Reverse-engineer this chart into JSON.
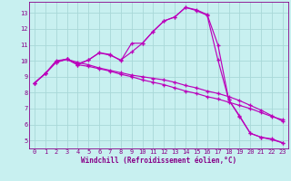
{
  "xlabel": "Windchill (Refroidissement éolien,°C)",
  "bg_color": "#c8f0f0",
  "grid_color": "#a8d8d8",
  "line_color": "#bb00bb",
  "xlim": [
    -0.5,
    23.5
  ],
  "ylim": [
    4.5,
    13.7
  ],
  "yticks": [
    5,
    6,
    7,
    8,
    9,
    10,
    11,
    12,
    13
  ],
  "xticks": [
    0,
    1,
    2,
    3,
    4,
    5,
    6,
    7,
    8,
    9,
    10,
    11,
    12,
    13,
    14,
    15,
    16,
    17,
    18,
    19,
    20,
    21,
    22,
    23
  ],
  "line1_x": [
    0,
    1,
    2,
    3,
    4,
    5,
    6,
    7,
    8,
    9,
    10,
    11,
    12,
    13,
    14,
    15,
    16,
    17,
    18,
    19,
    20,
    21,
    22,
    23
  ],
  "line1_y": [
    8.6,
    9.2,
    9.9,
    10.1,
    9.8,
    10.05,
    10.5,
    10.4,
    10.0,
    11.1,
    11.1,
    11.85,
    12.5,
    12.75,
    13.35,
    13.2,
    12.9,
    11.0,
    7.55,
    6.5,
    5.45,
    5.2,
    5.05,
    4.85
  ],
  "line2_x": [
    0,
    1,
    2,
    3,
    4,
    5,
    6,
    7,
    8,
    9,
    10,
    11,
    12,
    13,
    14,
    15,
    16,
    17,
    18,
    19,
    20,
    21,
    22,
    23
  ],
  "line2_y": [
    8.6,
    9.2,
    9.9,
    10.1,
    9.75,
    9.65,
    9.5,
    9.35,
    9.15,
    9.0,
    8.8,
    8.65,
    8.5,
    8.3,
    8.1,
    7.95,
    7.75,
    7.6,
    7.4,
    7.2,
    7.0,
    6.75,
    6.5,
    6.3
  ],
  "line3_x": [
    0,
    1,
    2,
    3,
    4,
    5,
    6,
    7,
    8,
    9,
    10,
    11,
    12,
    13,
    14,
    15,
    16,
    17,
    18,
    19,
    20,
    21,
    22,
    23
  ],
  "line3_y": [
    8.6,
    9.2,
    9.95,
    10.1,
    9.9,
    9.75,
    9.55,
    9.4,
    9.25,
    9.1,
    9.0,
    8.9,
    8.8,
    8.65,
    8.45,
    8.3,
    8.1,
    7.95,
    7.75,
    7.5,
    7.2,
    6.9,
    6.55,
    6.2
  ],
  "line4_x": [
    0,
    1,
    2,
    3,
    4,
    5,
    6,
    7,
    8,
    9,
    10,
    11,
    12,
    13,
    14,
    15,
    16,
    17,
    18,
    19,
    20,
    21,
    22,
    23
  ],
  "line4_y": [
    8.6,
    9.2,
    10.0,
    10.1,
    9.75,
    10.05,
    10.5,
    10.35,
    10.05,
    10.55,
    11.1,
    11.85,
    12.5,
    12.75,
    13.35,
    13.15,
    12.85,
    10.05,
    7.55,
    6.55,
    5.45,
    5.2,
    5.1,
    4.85
  ]
}
